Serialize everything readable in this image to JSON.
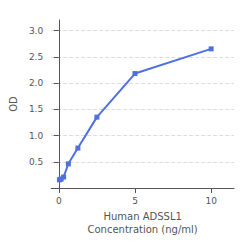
{
  "chart_data": {
    "type": "line",
    "xlabel": "Human ADSSL1\nConcentration (ng/ml)",
    "ylabel": "OD",
    "x": [
      0.039,
      0.078,
      0.156,
      0.313,
      0.625,
      1.25,
      2.5,
      5,
      10
    ],
    "values": [
      0.155,
      0.162,
      0.173,
      0.209,
      0.46,
      0.76,
      1.35,
      2.18,
      2.65
    ],
    "marker": "square",
    "xlim": [
      -0.5,
      11.5
    ],
    "xticks": [
      0,
      5,
      10
    ],
    "ylim": [
      0.0,
      3.2
    ],
    "yticks": [
      0.5,
      {
        "value": 1.0,
        "label": "1.0"
      },
      1.5,
      {
        "value": 2.0,
        "label": "2.0"
      },
      2.5,
      {
        "value": 3.0,
        "label": "3.0"
      }
    ],
    "grid": "y"
  }
}
